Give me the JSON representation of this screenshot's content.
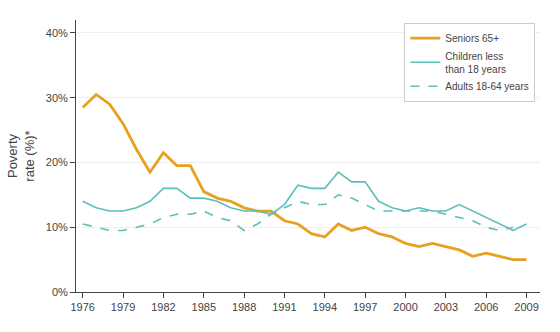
{
  "chart_data": {
    "type": "line",
    "y_label": "Poverty\nrate (%)*",
    "x": [
      1976,
      1977,
      1978,
      1979,
      1980,
      1981,
      1982,
      1983,
      1984,
      1985,
      1986,
      1987,
      1988,
      1989,
      1990,
      1991,
      1992,
      1993,
      1994,
      1995,
      1996,
      1997,
      1998,
      1999,
      2000,
      2001,
      2002,
      2003,
      2004,
      2005,
      2006,
      2007,
      2008,
      2009
    ],
    "series": [
      {
        "name": "Seniors 65+",
        "color": "#E8A020",
        "line_style": "solid",
        "values": [
          28.5,
          30.5,
          29.0,
          26.0,
          22.0,
          18.5,
          21.5,
          19.5,
          19.5,
          15.5,
          14.5,
          14.0,
          13.0,
          12.5,
          12.5,
          11.0,
          10.5,
          9.0,
          8.5,
          10.5,
          9.5,
          10.0,
          9.0,
          8.5,
          7.5,
          7.0,
          7.5,
          7.0,
          6.5,
          5.5,
          6.0,
          5.5,
          5.0,
          5.0
        ]
      },
      {
        "name": "Children less\nthan 18 years",
        "color": "#5BBFBA",
        "line_style": "solid",
        "values": [
          14.0,
          13.0,
          12.5,
          12.5,
          13.0,
          14.0,
          16.0,
          16.0,
          14.5,
          14.5,
          14.0,
          13.0,
          12.5,
          12.5,
          12.0,
          13.5,
          16.5,
          16.0,
          16.0,
          18.5,
          17.0,
          17.0,
          14.0,
          13.0,
          12.5,
          13.0,
          12.5,
          12.5,
          13.5,
          12.5,
          11.5,
          10.5,
          9.5,
          10.5
        ]
      },
      {
        "name": "Adults 18-64 years",
        "color": "#5BBFBA",
        "line_style": "dashed",
        "values": [
          10.5,
          10.0,
          9.5,
          9.5,
          10.0,
          10.5,
          11.5,
          12.0,
          12.0,
          12.5,
          11.5,
          11.0,
          9.5,
          10.5,
          12.0,
          13.0,
          14.0,
          13.5,
          13.5,
          15.0,
          14.5,
          13.5,
          12.5,
          12.5,
          12.5,
          12.5,
          12.5,
          12.0,
          11.5,
          11.0,
          10.0,
          9.5,
          10.0,
          null
        ]
      }
    ],
    "xlim": [
      1975.5,
      2010
    ],
    "xticks": [
      1976,
      1979,
      1982,
      1985,
      1988,
      1991,
      1994,
      1997,
      2000,
      2003,
      2006,
      2009
    ],
    "ylim": [
      0,
      42
    ],
    "yticks": [
      {
        "value": 0,
        "label": "0%"
      },
      {
        "value": 10,
        "label": "10%"
      },
      {
        "value": 20,
        "label": "20%"
      },
      {
        "value": 30,
        "label": "30%"
      },
      {
        "value": 40,
        "label": "40%"
      }
    ],
    "grid": true,
    "legend": "upper right"
  }
}
